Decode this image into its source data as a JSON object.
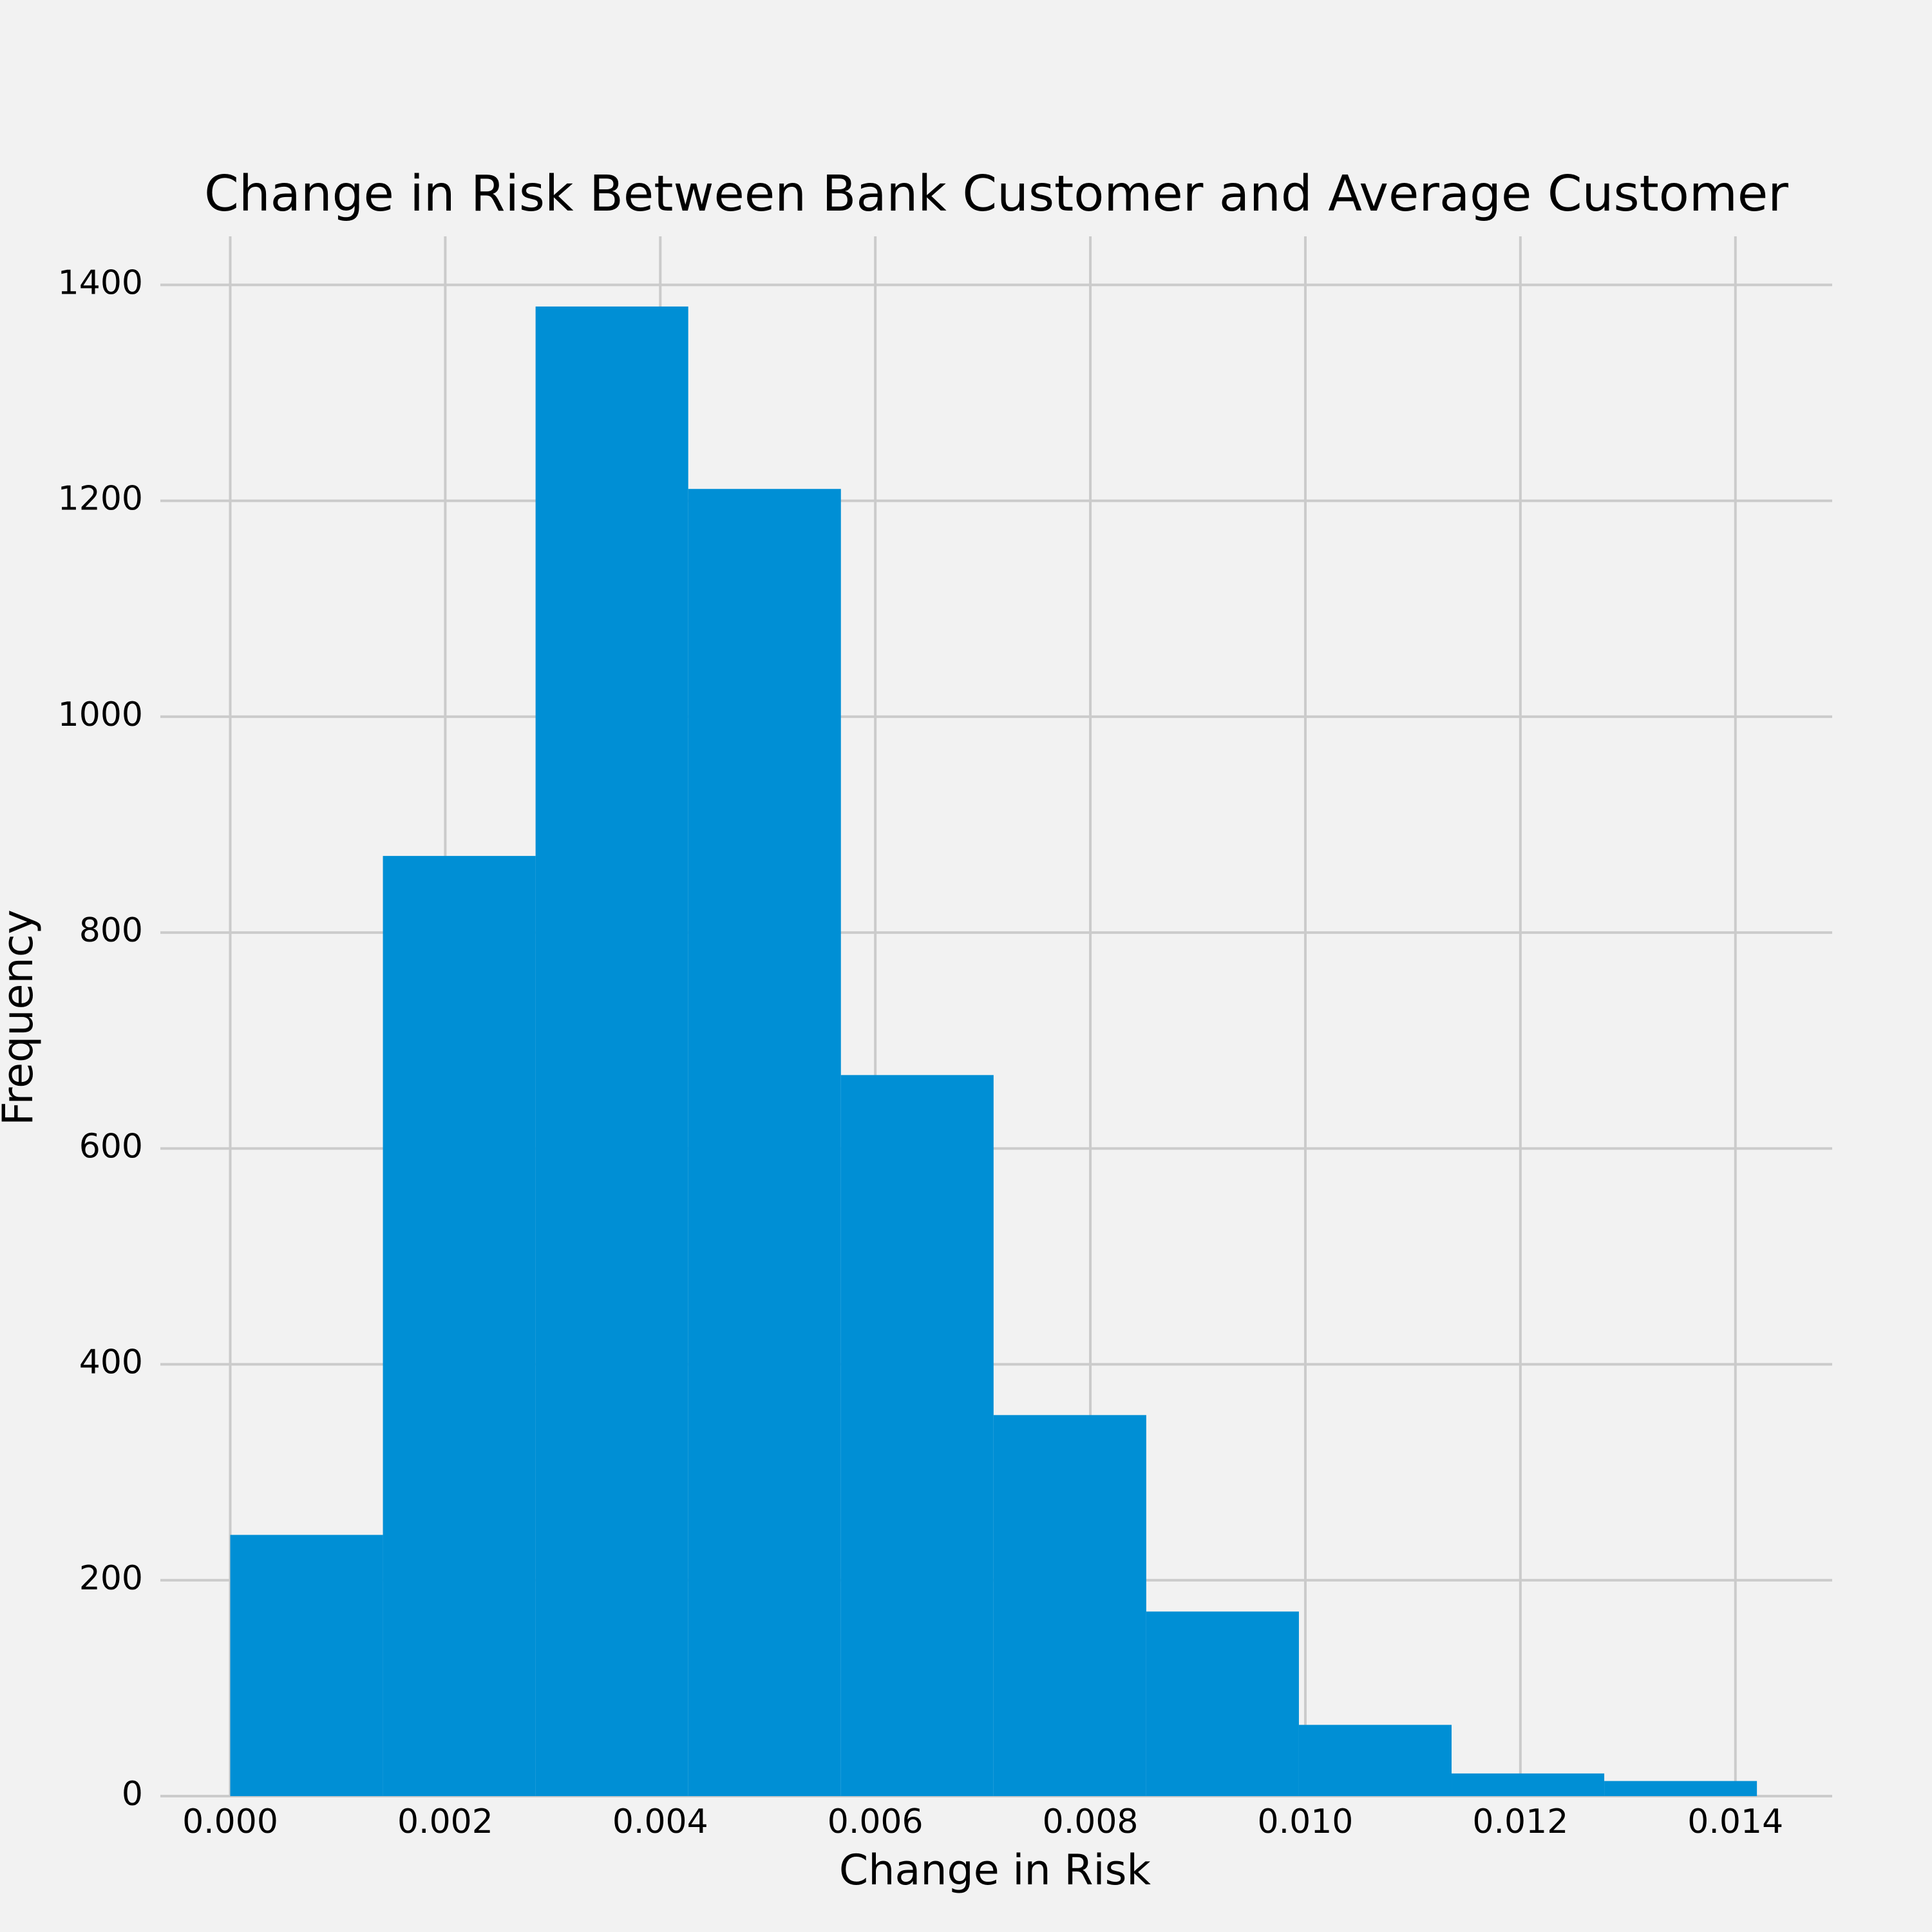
{
  "chart_data": {
    "type": "histogram",
    "title": "Change in Risk Between Bank Customer and Average Customer",
    "xlabel": "Change in Risk",
    "ylabel": "Frequency",
    "bins": [
      0,
      0.00142,
      0.00284,
      0.00426,
      0.00568,
      0.0071,
      0.00852,
      0.00994,
      0.01136,
      0.01278,
      0.0142
    ],
    "counts": [
      242,
      871,
      1380,
      1211,
      668,
      353,
      171,
      66,
      21,
      14
    ],
    "color": "#008fd5",
    "xlim": [
      -0.00065,
      0.0149
    ],
    "ylim": [
      0,
      1445
    ],
    "xticks": [
      {
        "value": 0,
        "label": "0.000"
      },
      {
        "value": 0.002,
        "label": "0.002"
      },
      {
        "value": 0.004,
        "label": "0.004"
      },
      {
        "value": 0.006,
        "label": "0.006"
      },
      {
        "value": 0.008,
        "label": "0.008"
      },
      {
        "value": 0.01,
        "label": "0.010"
      },
      {
        "value": 0.012,
        "label": "0.012"
      },
      {
        "value": 0.014,
        "label": "0.014"
      }
    ],
    "yticks": [
      0,
      200,
      400,
      600,
      800,
      1000,
      1200,
      1400
    ],
    "grid": true
  }
}
